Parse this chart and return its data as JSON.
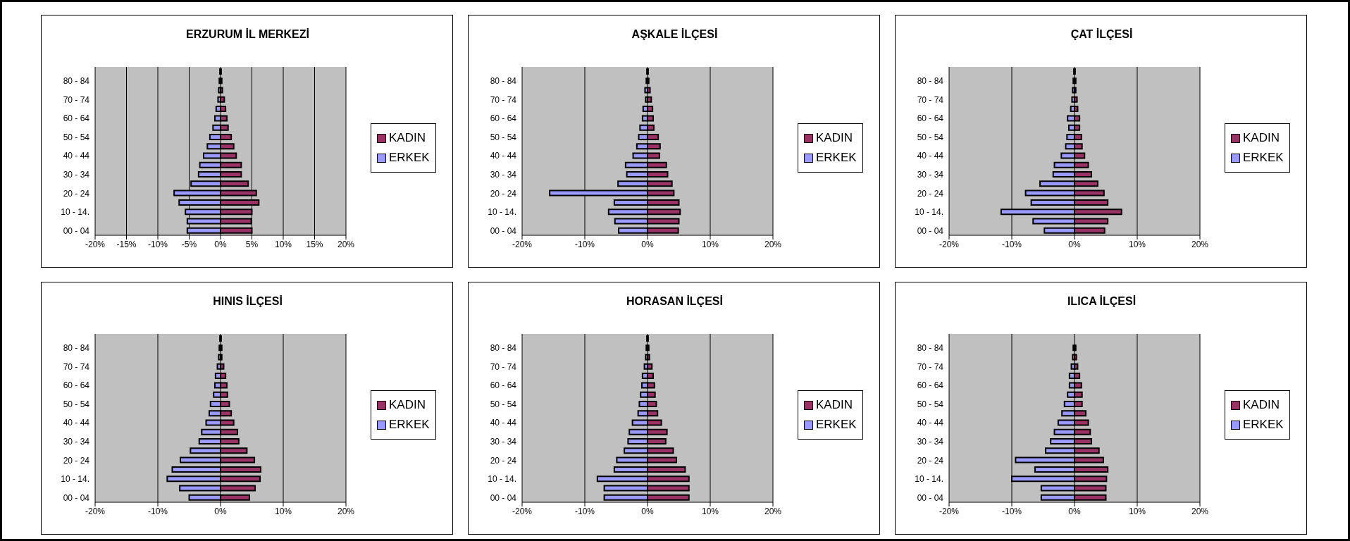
{
  "chart_data": [
    {
      "type": "bar",
      "title": "ERZURUM İL MERKEZİ",
      "orientation": "horizontal",
      "stacked": true,
      "grid": "x",
      "legend": "right",
      "categories": [
        null,
        "80 - 84",
        null,
        "70 - 74",
        null,
        "60 - 64",
        null,
        "50 - 54",
        null,
        "40 - 44",
        null,
        "30 - 34",
        null,
        "20 - 24",
        null,
        "10 - 14.",
        null,
        "00 - 04"
      ],
      "xlim": [
        -20,
        20
      ],
      "xticks": [
        {
          "value": -20,
          "label": "-20%"
        },
        {
          "value": -15,
          "label": "-15%"
        },
        {
          "value": -10,
          "label": "-10%"
        },
        {
          "value": -5,
          "label": "-5%"
        },
        {
          "value": 0,
          "label": "0%"
        },
        {
          "value": 5,
          "label": "5%"
        },
        {
          "value": 10,
          "label": "10%"
        },
        {
          "value": 15,
          "label": "15%"
        },
        {
          "value": 20,
          "label": "20%"
        }
      ],
      "series": [
        {
          "name": "KADIN",
          "color": "#993366",
          "values": [
            0.1,
            0.2,
            0.3,
            0.6,
            0.8,
            1.0,
            1.2,
            1.7,
            2.1,
            2.5,
            3.3,
            3.3,
            4.4,
            5.7,
            6.1,
            5.0,
            4.9,
            5.0
          ]
        },
        {
          "name": "ERKEK",
          "color": "#9999ff",
          "values": [
            -0.1,
            -0.2,
            -0.3,
            -0.4,
            -0.7,
            -0.9,
            -1.2,
            -1.7,
            -2.1,
            -2.7,
            -3.3,
            -3.5,
            -4.7,
            -7.4,
            -6.6,
            -5.6,
            -5.3,
            -5.3
          ]
        }
      ]
    },
    {
      "type": "bar",
      "title": "AŞKALE İLÇESİ",
      "orientation": "horizontal",
      "stacked": true,
      "grid": "x",
      "legend": "right",
      "categories": [
        null,
        "80 - 84",
        null,
        "70 - 74",
        null,
        "60 - 64",
        null,
        "50 - 54",
        null,
        "40 - 44",
        null,
        "30 - 34",
        null,
        "20 - 24",
        null,
        "10 - 14.",
        null,
        "00 - 04"
      ],
      "xlim": [
        -20,
        20
      ],
      "xticks": [
        {
          "value": -20,
          "label": "-20%"
        },
        {
          "value": -10,
          "label": "-10%"
        },
        {
          "value": 0,
          "label": "0%"
        },
        {
          "value": 10,
          "label": "10%"
        },
        {
          "value": 20,
          "label": "20%"
        }
      ],
      "series": [
        {
          "name": "KADIN",
          "color": "#993366",
          "values": [
            0.1,
            0.2,
            0.4,
            0.6,
            0.8,
            0.9,
            1.0,
            1.7,
            2.0,
            1.9,
            3.0,
            3.2,
            3.9,
            4.2,
            5.0,
            5.2,
            5.0,
            4.9
          ]
        },
        {
          "name": "ERKEK",
          "color": "#9999ff",
          "values": [
            -0.1,
            -0.2,
            -0.4,
            -0.3,
            -0.7,
            -0.8,
            -1.2,
            -1.4,
            -1.7,
            -2.3,
            -3.5,
            -3.3,
            -4.7,
            -15.6,
            -5.3,
            -6.2,
            -5.2,
            -4.6
          ]
        }
      ]
    },
    {
      "type": "bar",
      "title": "ÇAT İLÇESİ",
      "orientation": "horizontal",
      "stacked": true,
      "grid": "x",
      "legend": "right",
      "categories": [
        null,
        "80 - 84",
        null,
        "70 - 74",
        null,
        "60 - 64",
        null,
        "50 - 54",
        null,
        "40 - 44",
        null,
        "30 - 34",
        null,
        "20 - 24",
        null,
        "10 - 14.",
        null,
        "00 - 04"
      ],
      "xlim": [
        -20,
        20
      ],
      "xticks": [
        {
          "value": -20,
          "label": "-20%"
        },
        {
          "value": -10,
          "label": "-10%"
        },
        {
          "value": 0,
          "label": "0%"
        },
        {
          "value": 10,
          "label": "10%"
        },
        {
          "value": 20,
          "label": "20%"
        }
      ],
      "series": [
        {
          "name": "KADIN",
          "color": "#993366",
          "values": [
            0.1,
            0.2,
            0.2,
            0.4,
            0.5,
            0.8,
            0.8,
            1.1,
            1.2,
            1.6,
            2.2,
            2.7,
            3.7,
            4.7,
            5.3,
            7.5,
            5.3,
            4.8
          ]
        },
        {
          "name": "ERKEK",
          "color": "#9999ff",
          "values": [
            -0.1,
            -0.2,
            -0.3,
            -0.4,
            -0.6,
            -1.1,
            -0.9,
            -1.2,
            -1.4,
            -2.1,
            -3.2,
            -3.4,
            -5.5,
            -7.8,
            -6.9,
            -11.7,
            -6.6,
            -4.8
          ]
        }
      ]
    },
    {
      "type": "bar",
      "title": "HINIS İLÇESİ",
      "orientation": "horizontal",
      "stacked": true,
      "grid": "x",
      "legend": "right",
      "categories": [
        null,
        "80 - 84",
        null,
        "70 - 74",
        null,
        "60 - 64",
        null,
        "50 - 54",
        null,
        "40 - 44",
        null,
        "30 - 34",
        null,
        "20 - 24",
        null,
        "10 - 14.",
        null,
        "00 - 04"
      ],
      "xlim": [
        -20,
        20
      ],
      "xticks": [
        {
          "value": -20,
          "label": "-20%"
        },
        {
          "value": -10,
          "label": "-10%"
        },
        {
          "value": 0,
          "label": "0%"
        },
        {
          "value": 10,
          "label": "10%"
        },
        {
          "value": 20,
          "label": "20%"
        }
      ],
      "series": [
        {
          "name": "KADIN",
          "color": "#993366",
          "values": [
            0.1,
            0.2,
            0.2,
            0.5,
            0.8,
            1.0,
            1.1,
            1.4,
            1.7,
            2.1,
            2.7,
            2.9,
            4.2,
            5.4,
            6.4,
            6.3,
            5.5,
            4.6
          ]
        },
        {
          "name": "ERKEK",
          "color": "#9999ff",
          "values": [
            -0.1,
            -0.2,
            -0.3,
            -0.5,
            -0.8,
            -0.9,
            -1.1,
            -1.6,
            -1.8,
            -2.3,
            -3.0,
            -3.4,
            -4.8,
            -6.4,
            -7.7,
            -8.5,
            -6.5,
            -5.0
          ]
        }
      ]
    },
    {
      "type": "bar",
      "title": "HORASAN İLÇESİ",
      "orientation": "horizontal",
      "stacked": true,
      "grid": "x",
      "legend": "right",
      "categories": [
        null,
        "80 - 84",
        null,
        "70 - 74",
        null,
        "60 - 64",
        null,
        "50 - 54",
        null,
        "40 - 44",
        null,
        "30 - 34",
        null,
        "20 - 24",
        null,
        "10 - 14.",
        null,
        "00 - 04"
      ],
      "xlim": [
        -20,
        20
      ],
      "xticks": [
        {
          "value": -20,
          "label": "-20%"
        },
        {
          "value": -10,
          "label": "-10%"
        },
        {
          "value": 0,
          "label": "0%"
        },
        {
          "value": 10,
          "label": "10%"
        },
        {
          "value": 20,
          "label": "20%"
        }
      ],
      "series": [
        {
          "name": "KADIN",
          "color": "#993366",
          "values": [
            0.1,
            0.2,
            0.3,
            0.7,
            0.9,
            1.1,
            1.2,
            1.4,
            1.6,
            2.2,
            3.1,
            2.9,
            4.1,
            4.6,
            6.0,
            6.6,
            6.6,
            6.6
          ]
        },
        {
          "name": "ERKEK",
          "color": "#9999ff",
          "values": [
            -0.1,
            -0.2,
            -0.3,
            -0.5,
            -0.8,
            -0.9,
            -1.1,
            -1.3,
            -1.5,
            -2.4,
            -2.9,
            -3.1,
            -3.7,
            -4.9,
            -5.3,
            -8.0,
            -6.9,
            -6.9
          ]
        }
      ]
    },
    {
      "type": "bar",
      "title": "ILICA İLÇESİ",
      "orientation": "horizontal",
      "stacked": true,
      "grid": "x",
      "legend": "right",
      "categories": [
        null,
        "80 - 84",
        null,
        "70 - 74",
        null,
        "60 - 64",
        null,
        "50 - 54",
        null,
        "40 - 44",
        null,
        "30 - 34",
        null,
        "20 - 24",
        null,
        "10 - 14.",
        null,
        "00 - 04"
      ],
      "xlim": [
        -20,
        20
      ],
      "xticks": [
        {
          "value": -20,
          "label": "-20%"
        },
        {
          "value": -10,
          "label": "-10%"
        },
        {
          "value": 0,
          "label": "0%"
        },
        {
          "value": 10,
          "label": "10%"
        },
        {
          "value": 20,
          "label": "20%"
        }
      ],
      "series": [
        {
          "name": "KADIN",
          "color": "#993366",
          "values": [
            0,
            0.2,
            0.3,
            0.5,
            0.8,
            1.1,
            1.2,
            1.2,
            1.8,
            2.2,
            2.5,
            2.7,
            3.9,
            4.6,
            5.3,
            5.1,
            5.0,
            5.0
          ]
        },
        {
          "name": "ERKEK",
          "color": "#9999ff",
          "values": [
            0,
            -0.2,
            -0.3,
            -0.5,
            -0.8,
            -0.8,
            -1.1,
            -1.6,
            -2.0,
            -2.6,
            -3.2,
            -3.8,
            -4.6,
            -9.4,
            -6.3,
            -10.0,
            -5.3,
            -5.3
          ]
        }
      ]
    }
  ]
}
